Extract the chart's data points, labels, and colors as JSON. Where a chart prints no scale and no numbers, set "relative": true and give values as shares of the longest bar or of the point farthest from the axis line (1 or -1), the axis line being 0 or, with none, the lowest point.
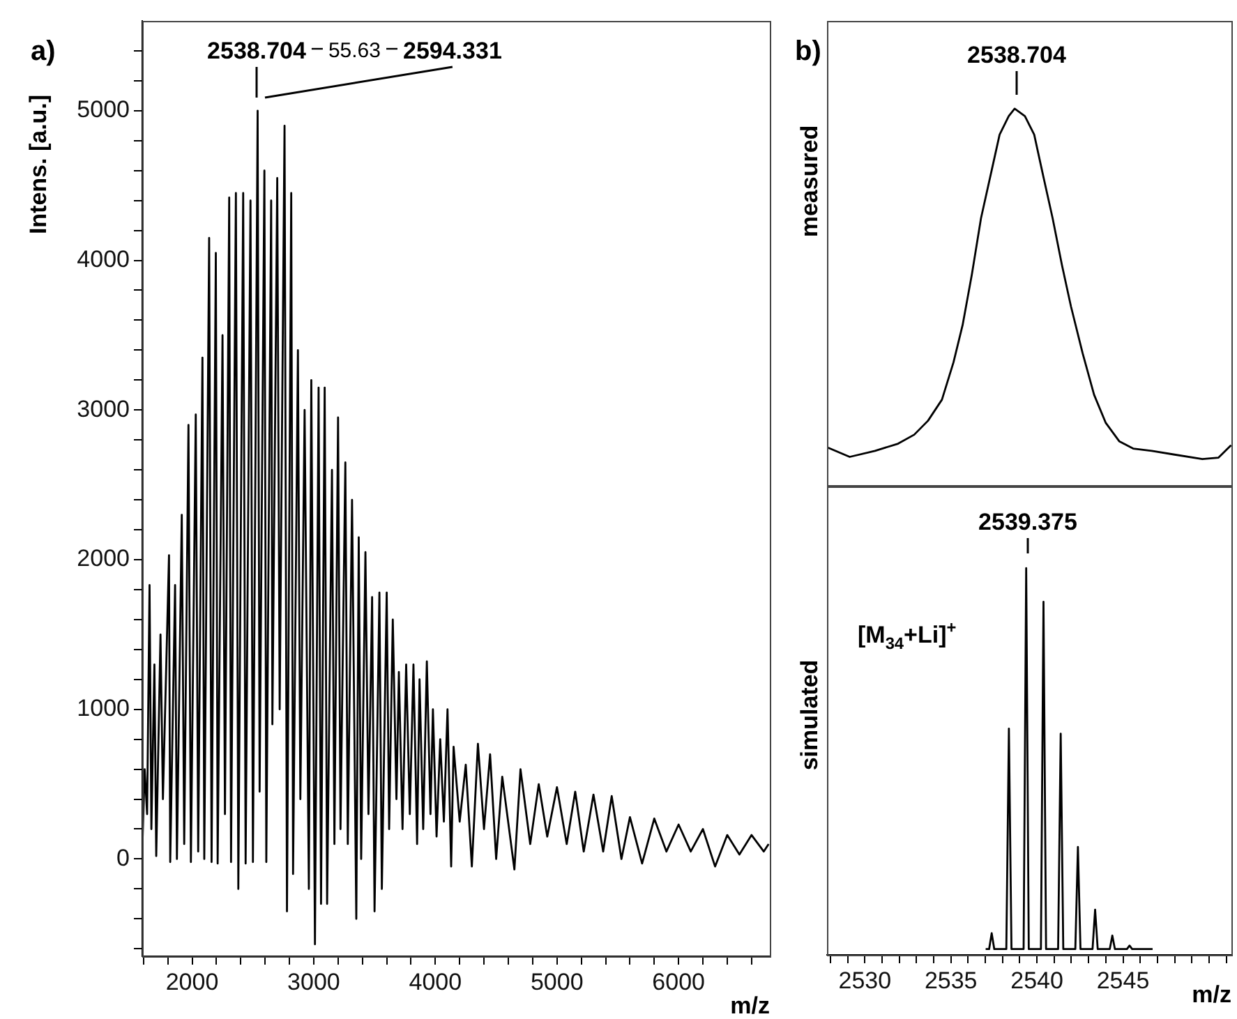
{
  "chart_data": [
    {
      "type": "line",
      "color": "#000000",
      "grid": false,
      "ylabel": "Intens. [a.u.]",
      "xlabel": "m/z",
      "annotations": [
        "a)",
        "2538.704",
        "55.63",
        "2594.331"
      ],
      "xlim": [
        1590,
        6750
      ],
      "ylim": [
        -650,
        5600
      ],
      "xticks": [
        {
          "value": 1600,
          "label": null
        },
        {
          "value": 1800,
          "label": null
        },
        2000,
        {
          "value": 2200,
          "label": null
        },
        {
          "value": 2400,
          "label": null
        },
        {
          "value": 2600,
          "label": null
        },
        {
          "value": 2800,
          "label": null
        },
        3000,
        {
          "value": 3200,
          "label": null
        },
        {
          "value": 3400,
          "label": null
        },
        {
          "value": 3600,
          "label": null
        },
        {
          "value": 3800,
          "label": null
        },
        4000,
        {
          "value": 4200,
          "label": null
        },
        {
          "value": 4400,
          "label": null
        },
        {
          "value": 4600,
          "label": null
        },
        {
          "value": 4800,
          "label": null
        },
        5000,
        {
          "value": 5200,
          "label": null
        },
        {
          "value": 5400,
          "label": null
        },
        {
          "value": 5600,
          "label": null
        },
        {
          "value": 5800,
          "label": null
        },
        6000,
        {
          "value": 6200,
          "label": null
        },
        {
          "value": 6400,
          "label": null
        },
        {
          "value": 6600,
          "label": null
        }
      ],
      "yticks": [
        {
          "value": -600,
          "label": null
        },
        {
          "value": -400,
          "label": null
        },
        {
          "value": -200,
          "label": null
        },
        0,
        {
          "value": 200,
          "label": null
        },
        {
          "value": 400,
          "label": null
        },
        {
          "value": 600,
          "label": null
        },
        {
          "value": 800,
          "label": null
        },
        1000,
        {
          "value": 1200,
          "label": null
        },
        {
          "value": 1400,
          "label": null
        },
        {
          "value": 1600,
          "label": null
        },
        {
          "value": 1800,
          "label": null
        },
        2000,
        {
          "value": 2200,
          "label": null
        },
        {
          "value": 2400,
          "label": null
        },
        {
          "value": 2600,
          "label": null
        },
        {
          "value": 2800,
          "label": null
        },
        3000,
        {
          "value": 3200,
          "label": null
        },
        {
          "value": 3400,
          "label": null
        },
        {
          "value": 3600,
          "label": null
        },
        {
          "value": 3800,
          "label": null
        },
        4000,
        {
          "value": 4200,
          "label": null
        },
        {
          "value": 4400,
          "label": null
        },
        {
          "value": 4600,
          "label": null
        },
        {
          "value": 4800,
          "label": null
        },
        5000,
        {
          "value": 5200,
          "label": null
        },
        {
          "value": 5400,
          "label": null
        }
      ],
      "x": [
        1590,
        1610,
        1630,
        1650,
        1665,
        1690,
        1705,
        1740,
        1760,
        1810,
        1820,
        1860,
        1875,
        1915,
        1935,
        1970,
        1990,
        2030,
        2050,
        2085,
        2100,
        2140,
        2160,
        2195,
        2210,
        2250,
        2270,
        2305,
        2320,
        2360,
        2380,
        2420,
        2440,
        2480,
        2500,
        2538.704,
        2555,
        2594.331,
        2610,
        2650,
        2660,
        2700,
        2720,
        2760,
        2780,
        2815,
        2830,
        2870,
        2890,
        2925,
        2960,
        2980,
        3010,
        3040,
        3060,
        3090,
        3110,
        3150,
        3170,
        3200,
        3220,
        3260,
        3280,
        3315,
        3350,
        3370,
        3390,
        3425,
        3450,
        3480,
        3500,
        3540,
        3560,
        3600,
        3620,
        3650,
        3680,
        3700,
        3730,
        3760,
        3790,
        3820,
        3850,
        3870,
        3900,
        3930,
        3960,
        3980,
        4010,
        4040,
        4070,
        4100,
        4130,
        4150,
        4200,
        4250,
        4300,
        4350,
        4400,
        4450,
        4500,
        4550,
        4650,
        4700,
        4780,
        4850,
        4920,
        5000,
        5080,
        5150,
        5220,
        5300,
        5380,
        5450,
        5530,
        5600,
        5700,
        5800,
        5900,
        6000,
        6100,
        6200,
        6300,
        6400,
        6500,
        6600,
        6700,
        6740
      ],
      "values": [
        50,
        600,
        300,
        1830,
        200,
        1300,
        20,
        1500,
        400,
        2030,
        -20,
        1830,
        0,
        2300,
        100,
        2900,
        -20,
        2970,
        50,
        3350,
        0,
        4150,
        -20,
        4050,
        -30,
        3500,
        300,
        4420,
        -20,
        4450,
        -200,
        4450,
        -30,
        4400,
        -20,
        5000,
        450,
        4600,
        -20,
        4400,
        900,
        4550,
        1000,
        4900,
        -350,
        4450,
        -100,
        3400,
        400,
        3000,
        -200,
        3200,
        -570,
        3150,
        -300,
        3150,
        -300,
        2600,
        100,
        2950,
        200,
        2650,
        100,
        2400,
        -400,
        2150,
        0,
        2050,
        300,
        1750,
        -350,
        1780,
        -200,
        1780,
        200,
        1600,
        400,
        1250,
        200,
        1300,
        300,
        1300,
        100,
        1200,
        200,
        1320,
        300,
        1000,
        150,
        800,
        250,
        1000,
        -50,
        750,
        250,
        630,
        -50,
        770,
        200,
        700,
        0,
        550,
        -70,
        600,
        100,
        500,
        150,
        480,
        100,
        450,
        50,
        430,
        50,
        420,
        0,
        280,
        -30,
        270,
        50,
        230,
        50,
        200,
        -50,
        160,
        30,
        160,
        50,
        100
      ]
    },
    {
      "type": "line",
      "color": "#000000",
      "relative": true,
      "ylabel": "measured",
      "annotations": [
        "b)",
        "2538.704"
      ],
      "xlim": [
        2527.8,
        2551.3
      ],
      "x": [
        2527.83,
        2529.12,
        2530.59,
        2531.93,
        2532.87,
        2533.67,
        2534.48,
        2535.15,
        2535.68,
        2536.22,
        2536.75,
        2537.29,
        2537.83,
        2538.36,
        2538.704,
        2539.3,
        2539.84,
        2540.37,
        2540.91,
        2541.45,
        2541.98,
        2542.65,
        2543.32,
        2543.99,
        2544.79,
        2545.59,
        2546.67,
        2548.0,
        2549.61,
        2550.55,
        2551.28
      ],
      "values": [
        0.1,
        0.075,
        0.091,
        0.11,
        0.134,
        0.171,
        0.227,
        0.326,
        0.425,
        0.56,
        0.709,
        0.82,
        0.931,
        0.98,
        1,
        0.98,
        0.931,
        0.82,
        0.709,
        0.585,
        0.474,
        0.351,
        0.24,
        0.166,
        0.116,
        0.097,
        0.091,
        0.081,
        0.069,
        0.073,
        0.106
      ]
    },
    {
      "type": "line",
      "color": "#000000",
      "relative": true,
      "ylabel": "simulated",
      "xlabel": "m/z",
      "annotations": [
        "[M$_{34}$+Li]$^{+}$",
        "2539.375"
      ],
      "xlim": [
        2527.8,
        2551.3
      ],
      "xticks": [
        {
          "value": 2528,
          "label": null
        },
        {
          "value": 2529,
          "label": null
        },
        2530,
        {
          "value": 2531,
          "label": null
        },
        {
          "value": 2532,
          "label": null
        },
        {
          "value": 2533,
          "label": null
        },
        {
          "value": 2534,
          "label": null
        },
        2535,
        {
          "value": 2536,
          "label": null
        },
        {
          "value": 2537,
          "label": null
        },
        {
          "value": 2538,
          "label": null
        },
        {
          "value": 2539,
          "label": null
        },
        2540,
        {
          "value": 2541,
          "label": null
        },
        {
          "value": 2542,
          "label": null
        },
        {
          "value": 2543,
          "label": null
        },
        {
          "value": 2544,
          "label": null
        },
        2545,
        {
          "value": 2546,
          "label": null
        },
        {
          "value": 2547,
          "label": null
        },
        {
          "value": 2548,
          "label": null
        },
        {
          "value": 2549,
          "label": null
        },
        {
          "value": 2550,
          "label": null
        },
        {
          "value": 2551,
          "label": null
        }
      ],
      "x": [
        2537.02,
        2537.22,
        2537.37,
        2537.52,
        2538.22,
        2538.37,
        2538.52,
        2539.225,
        2539.375,
        2539.525,
        2540.23,
        2540.38,
        2540.53,
        2541.23,
        2541.38,
        2541.53,
        2542.23,
        2542.38,
        2542.53,
        2543.23,
        2543.38,
        2543.53,
        2544.23,
        2544.38,
        2544.53,
        2545.23,
        2545.38,
        2545.53,
        2546.72
      ],
      "values": [
        0.015,
        0.015,
        0.056,
        0.015,
        0.015,
        0.585,
        0.015,
        0.015,
        1,
        0.015,
        0.015,
        0.913,
        0.015,
        0.015,
        0.572,
        0.015,
        0.015,
        0.279,
        0.015,
        0.015,
        0.117,
        0.015,
        0.015,
        0.05,
        0.015,
        0.015,
        0.024,
        0.015,
        0.015
      ]
    }
  ]
}
